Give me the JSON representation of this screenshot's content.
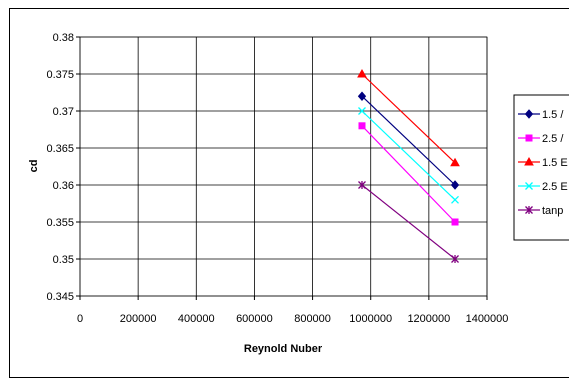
{
  "chart_data": {
    "type": "line",
    "xlabel": "Reynold Nuber",
    "ylabel": "cd",
    "xlim": [
      0,
      1400000
    ],
    "ylim": [
      0.345,
      0.38
    ],
    "x_ticks": [
      "0",
      "200000",
      "400000",
      "600000",
      "800000",
      "1000000",
      "1200000",
      "1400000"
    ],
    "y_ticks": [
      "0.345",
      "0.35",
      "0.355",
      "0.36",
      "0.365",
      "0.37",
      "0.375",
      "0.38"
    ],
    "grid": "on",
    "legend_position": "right",
    "series": [
      {
        "name": "1.5 /",
        "color": "#000080",
        "marker": "diamond",
        "x": [
          970000,
          1290000
        ],
        "y": [
          0.372,
          0.36
        ]
      },
      {
        "name": "2.5 /",
        "color": "#FF00FF",
        "marker": "square",
        "x": [
          970000,
          1290000
        ],
        "y": [
          0.368,
          0.355
        ]
      },
      {
        "name": "1.5 E",
        "color": "#FF0000",
        "marker": "triangle",
        "x": [
          970000,
          1290000
        ],
        "y": [
          0.375,
          0.363
        ]
      },
      {
        "name": "2.5 E",
        "color": "#00FFFF",
        "marker": "x",
        "x": [
          970000,
          1290000
        ],
        "y": [
          0.37,
          0.358
        ]
      },
      {
        "name": "tanp",
        "color": "#800080",
        "marker": "star",
        "x": [
          970000,
          1290000
        ],
        "y": [
          0.36,
          0.35
        ]
      }
    ]
  }
}
